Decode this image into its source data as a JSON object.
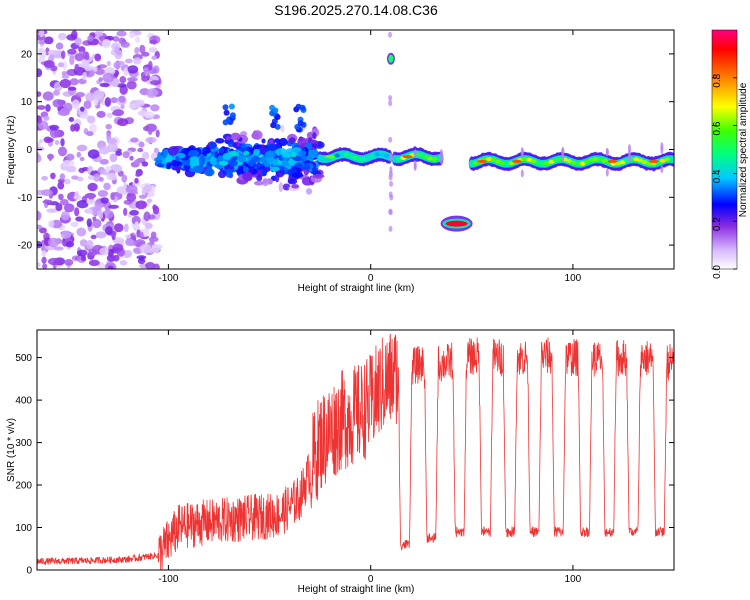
{
  "title": "S196.2025.270.14.08.C36",
  "chart_data": [
    {
      "type": "heatmap",
      "title": "S196.2025.270.14.08.C36",
      "xlabel": "Height of straight line (km)",
      "ylabel": "Frequency (Hz)",
      "xlim": [
        -165,
        150
      ],
      "ylim": [
        -25,
        25
      ],
      "xticks": [
        -100,
        0,
        100
      ],
      "yticks": [
        -20,
        -10,
        0,
        10,
        20
      ],
      "colorbar": {
        "label": "Normalized spectral amplitude",
        "range": [
          0.0,
          1.0
        ],
        "ticks": [
          0.0,
          0.2,
          0.4,
          0.6,
          0.8
        ],
        "tick_labels": [
          "0.0",
          "0.2",
          "0.4",
          "0.6",
          "0.8"
        ]
      },
      "features": [
        {
          "name": "diffuse noise",
          "x_range": [
            -165,
            -105
          ],
          "freq_range": [
            -25,
            25
          ],
          "amplitude": 0.1
        },
        {
          "name": "scattered signal",
          "x_range": [
            -105,
            -25
          ],
          "freq_center": -2,
          "amplitude": 0.3
        },
        {
          "name": "tone line",
          "x_range": [
            -25,
            10
          ],
          "freq_center": -1.5,
          "amplitude": 0.6
        },
        {
          "name": "tone line",
          "x_range": [
            12,
            35
          ],
          "freq_center": -1.5,
          "amplitude": 0.85
        },
        {
          "name": "spike",
          "x": 10,
          "freq_center": 19,
          "amplitude": 0.5
        },
        {
          "name": "offset segment",
          "x_range": [
            37,
            48
          ],
          "freq_center": -15.5,
          "amplitude": 0.95
        },
        {
          "name": "tone line",
          "x_range": [
            50,
            150
          ],
          "freq_center": -2.5,
          "amplitude": 0.85
        }
      ]
    },
    {
      "type": "line",
      "xlabel": "Height of straight line (km)",
      "ylabel": "SNR (10 * v/v)",
      "xlim": [
        -165,
        150
      ],
      "ylim": [
        0,
        565
      ],
      "xticks": [
        -100,
        0,
        100
      ],
      "yticks": [
        0,
        100,
        200,
        300,
        400,
        500
      ],
      "series": [
        {
          "name": "SNR",
          "color": "#ee3333",
          "x": [
            -165,
            -140,
            -120,
            -105,
            -95,
            -85,
            -75,
            -65,
            -55,
            -45,
            -35,
            -25,
            -15,
            -10,
            -5,
            0,
            5,
            10,
            15,
            18,
            22,
            28,
            35,
            45,
            55,
            65,
            75,
            85,
            95,
            105,
            115,
            125,
            135,
            145,
            150
          ],
          "values": [
            20,
            22,
            25,
            35,
            100,
            110,
            115,
            120,
            125,
            130,
            170,
            300,
            350,
            360,
            370,
            390,
            430,
            450,
            470,
            480,
            480,
            490,
            485,
            500,
            505,
            500,
            500,
            505,
            500,
            500,
            495,
            500,
            500,
            490,
            490
          ],
          "dips": [
            {
              "x": 17,
              "value": 60
            },
            {
              "x": 30,
              "value": 75
            },
            {
              "x": 44,
              "value": 90
            },
            {
              "x": 57,
              "value": 90
            },
            {
              "x": 69,
              "value": 90
            },
            {
              "x": 81,
              "value": 90
            },
            {
              "x": 93,
              "value": 90
            },
            {
              "x": 106,
              "value": 90
            },
            {
              "x": 118,
              "value": 90
            },
            {
              "x": 130,
              "value": 90
            },
            {
              "x": 143,
              "value": 90
            }
          ]
        }
      ]
    }
  ]
}
